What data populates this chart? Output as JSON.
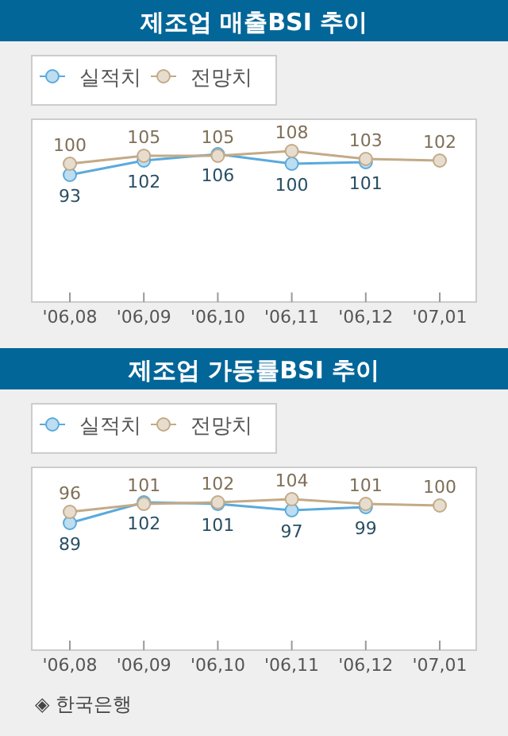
{
  "chart_data": [
    {
      "type": "line",
      "title": "제조업 매출BSI 추이",
      "categories": [
        "'06,08",
        "'06,09",
        "'06,10",
        "'06,11",
        "'06,12",
        "'07,01"
      ],
      "series": [
        {
          "name": "실적치",
          "color": "#5aaadc",
          "values": [
            93,
            102,
            106,
            100,
            101,
            null
          ]
        },
        {
          "name": "전망치",
          "color": "#c3aa87",
          "values": [
            100,
            105,
            105,
            108,
            103,
            102
          ]
        }
      ],
      "data_labels": true,
      "legend": "top left",
      "marker": "circle",
      "line_style": "solid",
      "grid": false
    },
    {
      "type": "line",
      "title": "제조업 가동률BSI 추이",
      "categories": [
        "'06,08",
        "'06,09",
        "'06,10",
        "'06,11",
        "'06,12",
        "'07,01"
      ],
      "series": [
        {
          "name": "실적치",
          "color": "#5aaadc",
          "values": [
            89,
            102,
            101,
            97,
            99,
            null
          ]
        },
        {
          "name": "전망치",
          "color": "#c3aa87",
          "values": [
            96,
            101,
            102,
            104,
            101,
            100
          ]
        }
      ],
      "data_labels": true,
      "legend": "top left",
      "marker": "circle",
      "line_style": "solid",
      "grid": false,
      "annotations": [
        "◈ 한국은행"
      ]
    }
  ]
}
